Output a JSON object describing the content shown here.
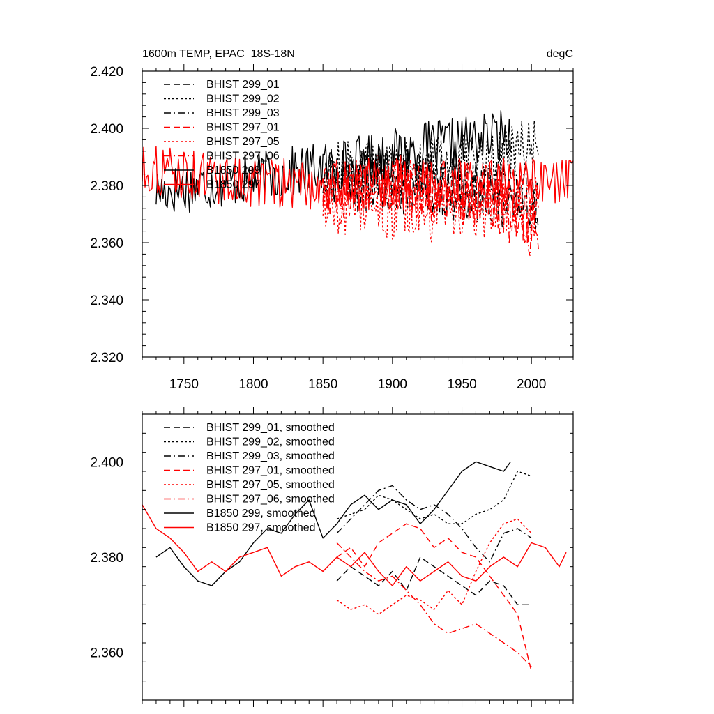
{
  "chart_data": [
    {
      "type": "line",
      "title": "1600m TEMP, EPAC_18S-18N",
      "units_label": "degC",
      "xlim": [
        1720,
        2030
      ],
      "ylim": [
        2.32,
        2.42
      ],
      "x_ticks": [
        1750,
        1800,
        1850,
        1900,
        1950,
        2000
      ],
      "x_tick_labels": [
        "1750",
        "1800",
        "1850",
        "1900",
        "1950",
        "2000"
      ],
      "y_ticks": [
        2.32,
        2.34,
        2.36,
        2.38,
        2.4,
        2.42
      ],
      "y_tick_labels": [
        "2.320",
        "2.340",
        "2.360",
        "2.380",
        "2.400",
        "2.420"
      ],
      "legend_position": "top-left",
      "series": [
        {
          "name": "BHIST 299_01",
          "color": "#000000",
          "dash": "dash",
          "x_range": [
            1850,
            2005
          ],
          "level": [
            2.384,
            2.383,
            2.381,
            2.379,
            2.376
          ],
          "amp": 0.011,
          "seed": 11
        },
        {
          "name": "BHIST 299_02",
          "color": "#000000",
          "dash": "dot",
          "x_range": [
            1850,
            2005
          ],
          "level": [
            2.386,
            2.386,
            2.387,
            2.389,
            2.394
          ],
          "amp": 0.01,
          "seed": 12
        },
        {
          "name": "BHIST 299_03",
          "color": "#000000",
          "dash": "dashdot",
          "x_range": [
            1850,
            2005
          ],
          "level": [
            2.383,
            2.381,
            2.38,
            2.377,
            2.375
          ],
          "amp": 0.011,
          "seed": 13
        },
        {
          "name": "BHIST 297_01",
          "color": "#ff0000",
          "dash": "dash",
          "x_range": [
            1850,
            2005
          ],
          "level": [
            2.379,
            2.381,
            2.38,
            2.377,
            2.369
          ],
          "amp": 0.012,
          "seed": 14
        },
        {
          "name": "BHIST 297_05",
          "color": "#ff0000",
          "dash": "dot",
          "x_range": [
            1850,
            2005
          ],
          "level": [
            2.375,
            2.372,
            2.371,
            2.372,
            2.372
          ],
          "amp": 0.011,
          "seed": 15
        },
        {
          "name": "BHIST 297_06",
          "color": "#ff0000",
          "dash": "dashdot",
          "x_range": [
            1850,
            2005
          ],
          "level": [
            2.38,
            2.381,
            2.378,
            2.376,
            2.364
          ],
          "amp": 0.011,
          "seed": 16
        },
        {
          "name": "B1850 299",
          "color": "#000000",
          "dash": "solid",
          "x_range": [
            1730,
            1985
          ],
          "level": [
            2.378,
            2.382,
            2.387,
            2.393,
            2.398
          ],
          "amp": 0.009,
          "seed": 17
        },
        {
          "name": "B1850 297",
          "color": "#ff0000",
          "dash": "solid",
          "x_range": [
            1720,
            2030
          ],
          "level": [
            2.386,
            2.381,
            2.38,
            2.381,
            2.38
          ],
          "amp": 0.009,
          "seed": 18
        }
      ]
    },
    {
      "type": "line",
      "xlim": [
        1720,
        2030
      ],
      "ylim": [
        2.35,
        2.41
      ],
      "x_ticks": [
        1750,
        1800,
        1850,
        1900,
        1950,
        2000
      ],
      "y_ticks": [
        2.36,
        2.38,
        2.4
      ],
      "y_tick_labels": [
        "2.360",
        "2.380",
        "2.400"
      ],
      "legend_position": "top-left",
      "series": [
        {
          "name": "BHIST 299_01, smoothed",
          "color": "#000000",
          "dash": "dash",
          "x": [
            1860,
            1870,
            1880,
            1890,
            1900,
            1910,
            1920,
            1930,
            1940,
            1950,
            1960,
            1970,
            1980,
            1990,
            2000
          ],
          "y": [
            2.375,
            2.378,
            2.376,
            2.374,
            2.377,
            2.373,
            2.38,
            2.378,
            2.376,
            2.374,
            2.372,
            2.375,
            2.374,
            2.37,
            2.37
          ]
        },
        {
          "name": "BHIST 299_02, smoothed",
          "color": "#000000",
          "dash": "dot",
          "x": [
            1860,
            1870,
            1880,
            1890,
            1900,
            1910,
            1920,
            1930,
            1940,
            1950,
            1960,
            1970,
            1980,
            1990,
            2000
          ],
          "y": [
            2.388,
            2.389,
            2.39,
            2.393,
            2.392,
            2.39,
            2.388,
            2.389,
            2.387,
            2.387,
            2.389,
            2.39,
            2.392,
            2.398,
            2.397
          ]
        },
        {
          "name": "BHIST 299_03, smoothed",
          "color": "#000000",
          "dash": "dashdot",
          "x": [
            1860,
            1870,
            1880,
            1890,
            1900,
            1910,
            1920,
            1930,
            1940,
            1950,
            1960,
            1970,
            1980,
            1990,
            2000
          ],
          "y": [
            2.385,
            2.388,
            2.391,
            2.394,
            2.395,
            2.392,
            2.39,
            2.391,
            2.389,
            2.386,
            2.382,
            2.379,
            2.385,
            2.386,
            2.384
          ]
        },
        {
          "name": "BHIST 297_01, smoothed",
          "color": "#ff0000",
          "dash": "dash",
          "x": [
            1860,
            1870,
            1880,
            1890,
            1900,
            1910,
            1920,
            1930,
            1940,
            1950,
            1960,
            1970,
            1980,
            1990,
            2000
          ],
          "y": [
            2.38,
            2.382,
            2.378,
            2.383,
            2.385,
            2.387,
            2.386,
            2.382,
            2.384,
            2.381,
            2.38,
            2.376,
            2.372,
            2.368,
            2.356
          ]
        },
        {
          "name": "BHIST 297_05, smoothed",
          "color": "#ff0000",
          "dash": "dot",
          "x": [
            1860,
            1870,
            1880,
            1890,
            1900,
            1910,
            1920,
            1930,
            1940,
            1950,
            1960,
            1970,
            1980,
            1990,
            2000
          ],
          "y": [
            2.371,
            2.369,
            2.37,
            2.368,
            2.37,
            2.372,
            2.371,
            2.369,
            2.373,
            2.37,
            2.377,
            2.383,
            2.387,
            2.388,
            2.385
          ]
        },
        {
          "name": "BHIST 297_06, smoothed",
          "color": "#ff0000",
          "dash": "dashdot",
          "x": [
            1860,
            1870,
            1880,
            1890,
            1900,
            1910,
            1920,
            1930,
            1940,
            1950,
            1960,
            1970,
            1980,
            1990,
            2000
          ],
          "y": [
            2.383,
            2.38,
            2.377,
            2.375,
            2.376,
            2.373,
            2.37,
            2.366,
            2.364,
            2.365,
            2.366,
            2.364,
            2.362,
            2.36,
            2.357
          ]
        },
        {
          "name": "B1850 299, smoothed",
          "color": "#000000",
          "dash": "solid",
          "x": [
            1730,
            1740,
            1750,
            1760,
            1770,
            1780,
            1790,
            1800,
            1810,
            1820,
            1830,
            1840,
            1850,
            1860,
            1870,
            1880,
            1890,
            1900,
            1910,
            1920,
            1930,
            1940,
            1950,
            1960,
            1970,
            1980,
            1985
          ],
          "y": [
            2.38,
            2.382,
            2.378,
            2.375,
            2.374,
            2.377,
            2.379,
            2.383,
            2.386,
            2.385,
            2.389,
            2.392,
            2.384,
            2.387,
            2.391,
            2.393,
            2.39,
            2.392,
            2.391,
            2.387,
            2.39,
            2.394,
            2.398,
            2.4,
            2.399,
            2.398,
            2.4
          ]
        },
        {
          "name": "B1850 297, smoothed",
          "color": "#ff0000",
          "dash": "solid",
          "x": [
            1720,
            1730,
            1740,
            1750,
            1760,
            1770,
            1780,
            1790,
            1800,
            1810,
            1820,
            1830,
            1840,
            1850,
            1860,
            1870,
            1880,
            1890,
            1900,
            1910,
            1920,
            1930,
            1940,
            1950,
            1960,
            1970,
            1980,
            1990,
            2000,
            2010,
            2020,
            2025
          ],
          "y": [
            2.391,
            2.386,
            2.384,
            2.381,
            2.377,
            2.379,
            2.377,
            2.38,
            2.381,
            2.382,
            2.376,
            2.378,
            2.379,
            2.377,
            2.38,
            2.378,
            2.381,
            2.377,
            2.374,
            2.378,
            2.375,
            2.377,
            2.379,
            2.376,
            2.375,
            2.378,
            2.38,
            2.378,
            2.383,
            2.382,
            2.378,
            2.381
          ]
        }
      ]
    }
  ]
}
